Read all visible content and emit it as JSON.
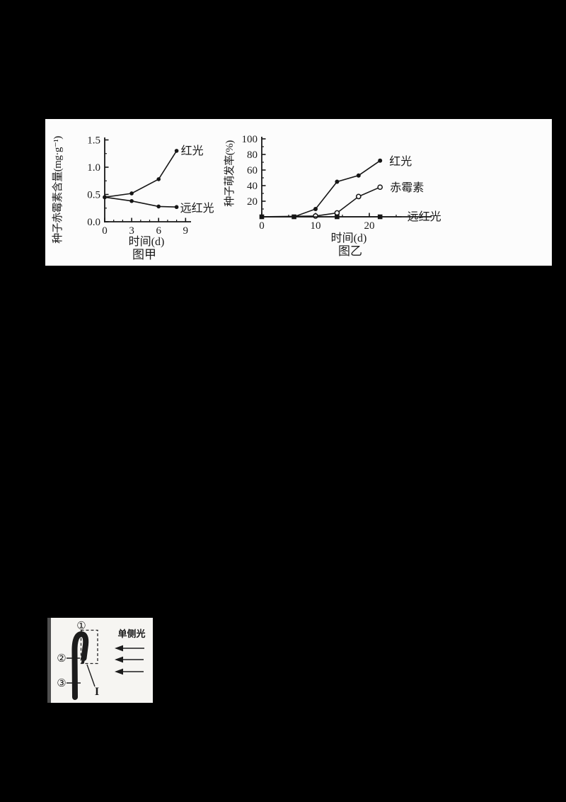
{
  "canvas": {
    "background": "#000000",
    "panel_background": "#fcfcfc",
    "ink": "#161616"
  },
  "chart_data": [
    {
      "type": "line",
      "title": "图甲",
      "xlabel": "时间(d)",
      "ylabel": "种子赤霉素含量(mg·g⁻¹)",
      "xlim": [
        0,
        9.6
      ],
      "ylim": [
        0,
        1.55
      ],
      "grid": false,
      "xticks": [
        {
          "v": 0,
          "label": "0"
        },
        {
          "v": 3,
          "label": "3"
        },
        {
          "v": 6,
          "label": "6"
        },
        {
          "v": 9,
          "label": "9"
        }
      ],
      "xminor": [
        1,
        2,
        4,
        5,
        7,
        8
      ],
      "yticks": [
        {
          "v": 0,
          "label": "0.0"
        },
        {
          "v": 0.5,
          "label": "0.5"
        },
        {
          "v": 1.0,
          "label": "1.0"
        },
        {
          "v": 1.5,
          "label": "1.5"
        }
      ],
      "yminor": [
        0.25,
        0.75,
        1.25
      ],
      "series": [
        {
          "name": "红光",
          "marker": "dot",
          "points": [
            [
              0,
              0.45
            ],
            [
              3,
              0.52
            ],
            [
              6,
              0.78
            ],
            [
              8,
              1.3
            ]
          ]
        },
        {
          "name": "远红光",
          "marker": "dot",
          "points": [
            [
              0,
              0.45
            ],
            [
              3,
              0.38
            ],
            [
              6,
              0.28
            ],
            [
              8,
              0.27
            ]
          ]
        }
      ],
      "legend_position": "end-of-line-labels"
    },
    {
      "type": "line",
      "title": "图乙",
      "xlabel": "时间(d)",
      "ylabel": "种子萌发率(%)",
      "xlim": [
        0,
        29
      ],
      "ylim": [
        0,
        105
      ],
      "grid": false,
      "xticks": [
        {
          "v": 0,
          "label": "0"
        },
        {
          "v": 10,
          "label": "10"
        },
        {
          "v": 20,
          "label": "20"
        }
      ],
      "xminor": [
        5,
        15,
        25
      ],
      "yticks": [
        {
          "v": 20,
          "label": "20"
        },
        {
          "v": 40,
          "label": "40"
        },
        {
          "v": 60,
          "label": "60"
        },
        {
          "v": 80,
          "label": "80"
        },
        {
          "v": 100,
          "label": "100"
        }
      ],
      "yminor": [
        10,
        30,
        50,
        70,
        90
      ],
      "series": [
        {
          "name": "红光",
          "marker": "dot",
          "points": [
            [
              0,
              0
            ],
            [
              6,
              0
            ],
            [
              10,
              10
            ],
            [
              14,
              45
            ],
            [
              18,
              53
            ],
            [
              22,
              72
            ]
          ],
          "marker_from": 2
        },
        {
          "name": "赤霉素",
          "marker": "open-circle",
          "points": [
            [
              0,
              0
            ],
            [
              10,
              1
            ],
            [
              14,
              5
            ],
            [
              18,
              26
            ],
            [
              22,
              38
            ]
          ],
          "marker_from": 1
        },
        {
          "name": "远红光",
          "marker": "square",
          "points": [
            [
              0,
              0
            ],
            [
              6,
              0
            ],
            [
              14,
              0
            ],
            [
              22,
              0
            ],
            [
              26,
              0
            ]
          ],
          "marker_until": 3
        }
      ],
      "legend_position": "end-of-line-labels"
    }
  ],
  "diagram": {
    "callouts": [
      {
        "label": "①"
      },
      {
        "label": "②"
      },
      {
        "label": "③"
      }
    ],
    "region_label": "I",
    "light_label": "单侧光",
    "light_arrow_count": 3,
    "light_direction": "left"
  }
}
